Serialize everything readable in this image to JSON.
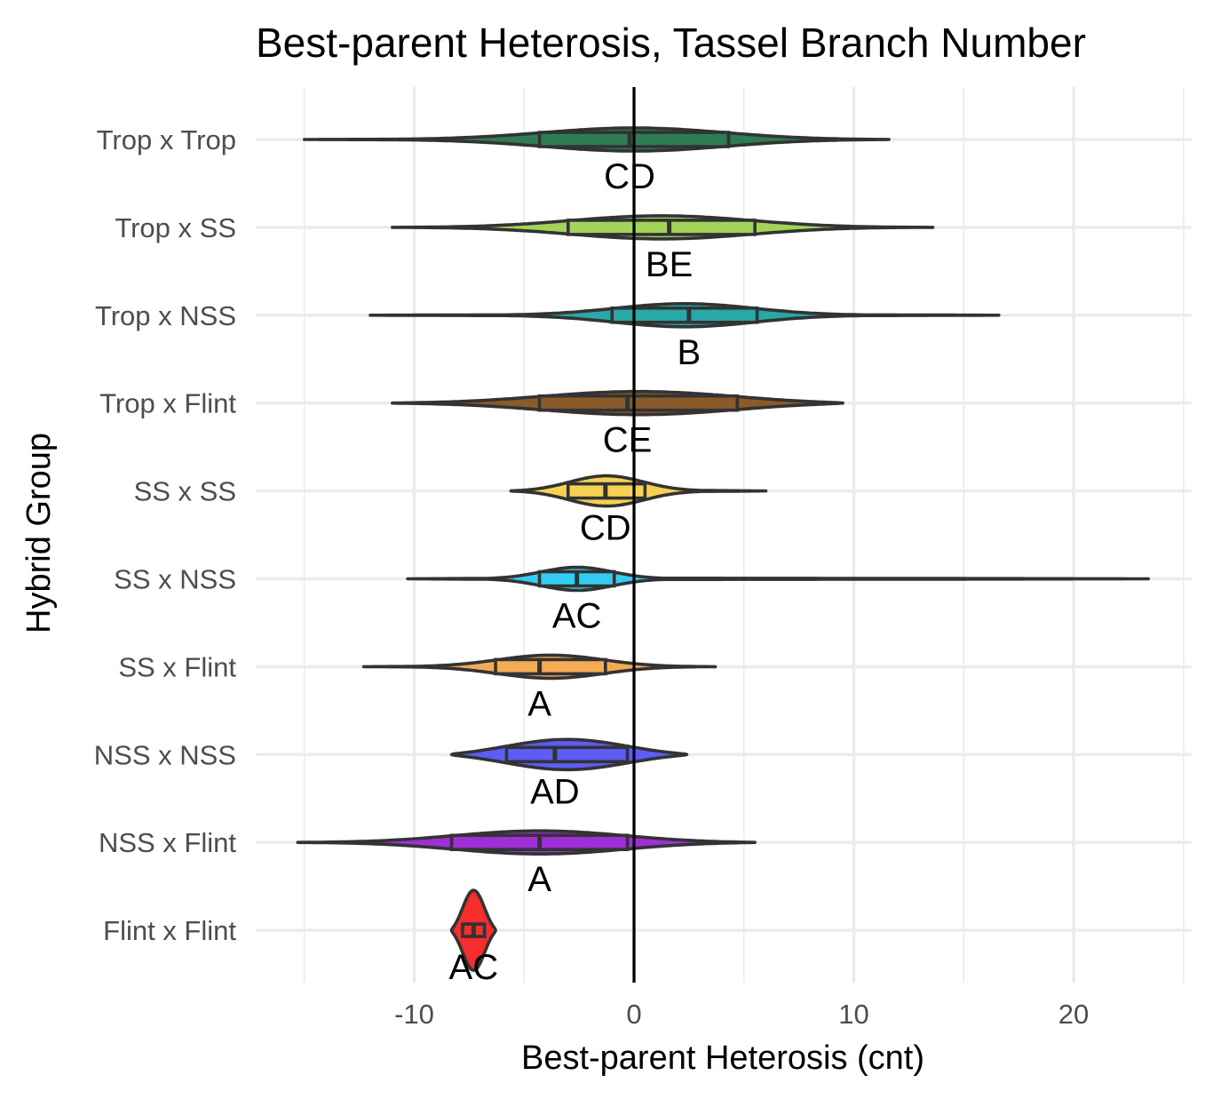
{
  "chart_data": {
    "type": "violin",
    "title": "Best-parent Heterosis, Tassel Branch Number",
    "xlabel": "Best-parent Heterosis (cnt)",
    "ylabel": "Hybrid Group",
    "xlim": [
      -15.5,
      23.5
    ],
    "xticks": [
      -10,
      0,
      10,
      20
    ],
    "xtick_labels": [
      "-10",
      "0",
      "10",
      "20"
    ],
    "reference_line_x": 0,
    "grid": true,
    "legend": "none",
    "groups": [
      {
        "name": "Trop x Trop",
        "label": "CD",
        "color": "#2e7d52",
        "min": -15.0,
        "q1": -4.3,
        "median": -0.2,
        "q3": 4.3,
        "max": 11.6
      },
      {
        "name": "Trop x SS",
        "label": "BE",
        "color": "#a3d45a",
        "min": -11.0,
        "q1": -3.0,
        "median": 1.6,
        "q3": 5.5,
        "max": 13.6
      },
      {
        "name": "Trop x NSS",
        "label": "B",
        "color": "#29a8a8",
        "min": -12.0,
        "q1": -1.0,
        "median": 2.5,
        "q3": 5.6,
        "max": 16.6
      },
      {
        "name": "Trop x Flint",
        "label": "CE",
        "color": "#8a5a2b",
        "min": -11.0,
        "q1": -4.3,
        "median": -0.3,
        "q3": 4.7,
        "max": 9.5
      },
      {
        "name": "SS x SS",
        "label": "CD",
        "color": "#f7d154",
        "min": -5.6,
        "q1": -3.0,
        "median": -1.3,
        "q3": 0.5,
        "max": 6.0
      },
      {
        "name": "SS x NSS",
        "label": "AC",
        "color": "#33ccf2",
        "min": -10.3,
        "q1": -4.3,
        "median": -2.6,
        "q3": -0.9,
        "max": 23.4
      },
      {
        "name": "SS x Flint",
        "label": "A",
        "color": "#f5aa55",
        "min": -12.3,
        "q1": -6.3,
        "median": -4.3,
        "q3": -1.3,
        "max": 3.7
      },
      {
        "name": "NSS x NSS",
        "label": "AD",
        "color": "#5e5cf7",
        "min": -8.3,
        "q1": -5.8,
        "median": -3.6,
        "q3": -0.3,
        "max": 2.4
      },
      {
        "name": "NSS x Flint",
        "label": "A",
        "color": "#a02ed6",
        "min": -15.3,
        "q1": -8.3,
        "median": -4.3,
        "q3": -0.3,
        "max": 5.5
      },
      {
        "name": "Flint x Flint",
        "label": "AC",
        "color": "#f52d2d",
        "min": -8.3,
        "q1": -7.8,
        "median": -7.3,
        "q3": -6.8,
        "max": -6.3
      }
    ]
  }
}
